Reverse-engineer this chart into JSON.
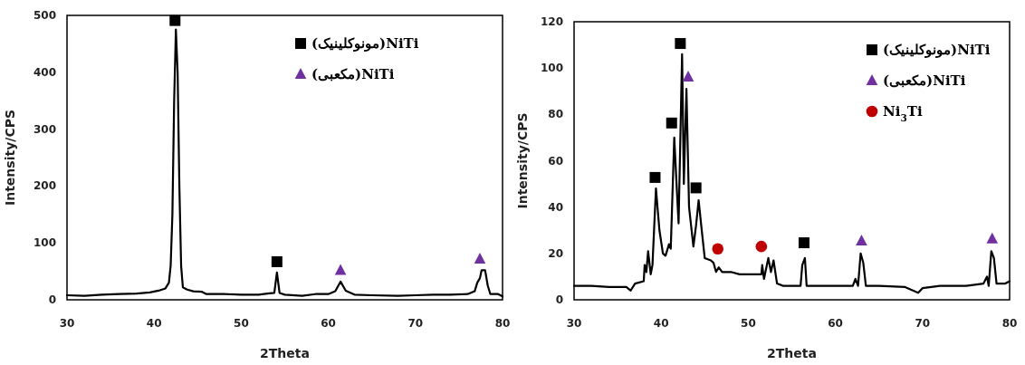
{
  "chart_data": [
    {
      "type": "line",
      "xlabel": "2Theta",
      "ylabel": "Intensity/CPS",
      "xlim": [
        30,
        80
      ],
      "ylim": [
        0,
        500
      ],
      "xticks": [
        30,
        40,
        50,
        60,
        70,
        80
      ],
      "yticks": [
        0,
        100,
        200,
        300,
        400,
        500
      ],
      "legend": "top right",
      "series": [
        {
          "color": "#000000",
          "x": [
            30,
            32,
            34,
            36,
            38,
            39.5,
            40.5,
            41.3,
            41.7,
            41.9,
            42.1,
            42.3,
            42.5,
            42.7,
            42.9,
            43.1,
            43.3,
            43.8,
            44.5,
            45.5,
            46,
            48,
            50,
            52,
            53,
            53.8,
            54.1,
            54.4,
            55,
            57,
            58.5,
            60,
            60.8,
            61.4,
            62,
            63,
            65,
            68,
            70,
            72,
            74,
            76,
            76.8,
            77.1,
            77.4,
            77.6,
            78,
            78.3,
            78.6,
            79.5,
            80
          ],
          "values": [
            8,
            7,
            9,
            10,
            11,
            13,
            16,
            20,
            30,
            60,
            150,
            350,
            475,
            400,
            200,
            60,
            22,
            18,
            15,
            14,
            10,
            10,
            9,
            9,
            11,
            12,
            48,
            12,
            9,
            7,
            10,
            10,
            15,
            32,
            16,
            9,
            8,
            7,
            8,
            9,
            9,
            10,
            15,
            30,
            38,
            52,
            52,
            25,
            10,
            10,
            6
          ]
        },
        {
          "type": "scatter",
          "name": "NiTi(مونوکلینیک)",
          "marker": "square",
          "color": "#000000",
          "x": [
            42.4,
            54.1
          ],
          "values": [
            491,
            67
          ]
        },
        {
          "type": "scatter",
          "name": "NiTi(مکعبی)",
          "marker": "triangle",
          "color": "#7030a0",
          "x": [
            61.4,
            77.4
          ],
          "values": [
            52,
            72
          ]
        }
      ]
    },
    {
      "type": "line",
      "xlabel": "2Theta",
      "ylabel": "Intensity/CPS",
      "xlim": [
        30,
        80
      ],
      "ylim": [
        0,
        120
      ],
      "xticks": [
        30,
        40,
        50,
        60,
        70,
        80
      ],
      "yticks": [
        0,
        20,
        40,
        60,
        80,
        100,
        120
      ],
      "legend": "top right",
      "series": [
        {
          "color": "#000000",
          "x": [
            30,
            32,
            34,
            36,
            36.5,
            37,
            38,
            38.1,
            38.3,
            38.5,
            38.8,
            39,
            39.4,
            39.8,
            40.2,
            40.5,
            40.9,
            41.1,
            41.5,
            41.9,
            42,
            42.4,
            42.6,
            42.9,
            43.2,
            43.7,
            44,
            44.3,
            44.6,
            45,
            45.7,
            46,
            46.3,
            46.6,
            47,
            48,
            49,
            50,
            51,
            51.5,
            51.6,
            51.8,
            52.3,
            52.6,
            52.9,
            53.3,
            54,
            55,
            56,
            56.2,
            56.5,
            56.7,
            58,
            60,
            62,
            62.3,
            62.6,
            62.9,
            63.2,
            63.5,
            65,
            68,
            69.5,
            70,
            72,
            75,
            77,
            77.4,
            77.6,
            77.9,
            78.2,
            78.5,
            79.5,
            80
          ],
          "values": [
            6,
            6,
            5.5,
            5.5,
            4,
            7,
            8,
            15,
            12,
            21,
            11,
            15,
            48,
            30,
            20,
            19,
            24,
            22,
            70,
            40,
            33,
            106,
            50,
            91,
            40,
            23,
            32,
            43,
            32,
            18,
            17,
            16,
            12,
            14,
            12,
            12,
            11,
            11,
            11,
            11,
            15,
            9,
            18,
            12,
            17,
            7,
            6,
            6,
            6,
            15,
            18,
            6,
            6,
            6,
            6,
            9,
            6,
            20,
            16,
            6,
            6,
            5.5,
            3,
            5,
            6,
            6,
            7,
            10,
            6,
            21,
            18,
            7,
            7,
            8
          ]
        },
        {
          "type": "scatter",
          "name": "NiTi(مونوکلینیک)",
          "marker": "square",
          "color": "#000000",
          "x": [
            39.3,
            41.2,
            42.2,
            44.0,
            56.4
          ],
          "values": [
            52.8,
            76.3,
            110.6,
            48.3,
            24.6
          ]
        },
        {
          "type": "scatter",
          "name": "NiTi(مکعبی)",
          "marker": "triangle",
          "color": "#7030a0",
          "x": [
            43.1,
            63.0,
            78.0
          ],
          "values": [
            96.2,
            25.4,
            26.3
          ]
        },
        {
          "type": "scatter",
          "name": "Ni$_{3}$Ti",
          "marker": "circle",
          "color": "#c00000",
          "x": [
            46.5,
            51.5
          ],
          "values": [
            22,
            23
          ]
        }
      ]
    }
  ]
}
